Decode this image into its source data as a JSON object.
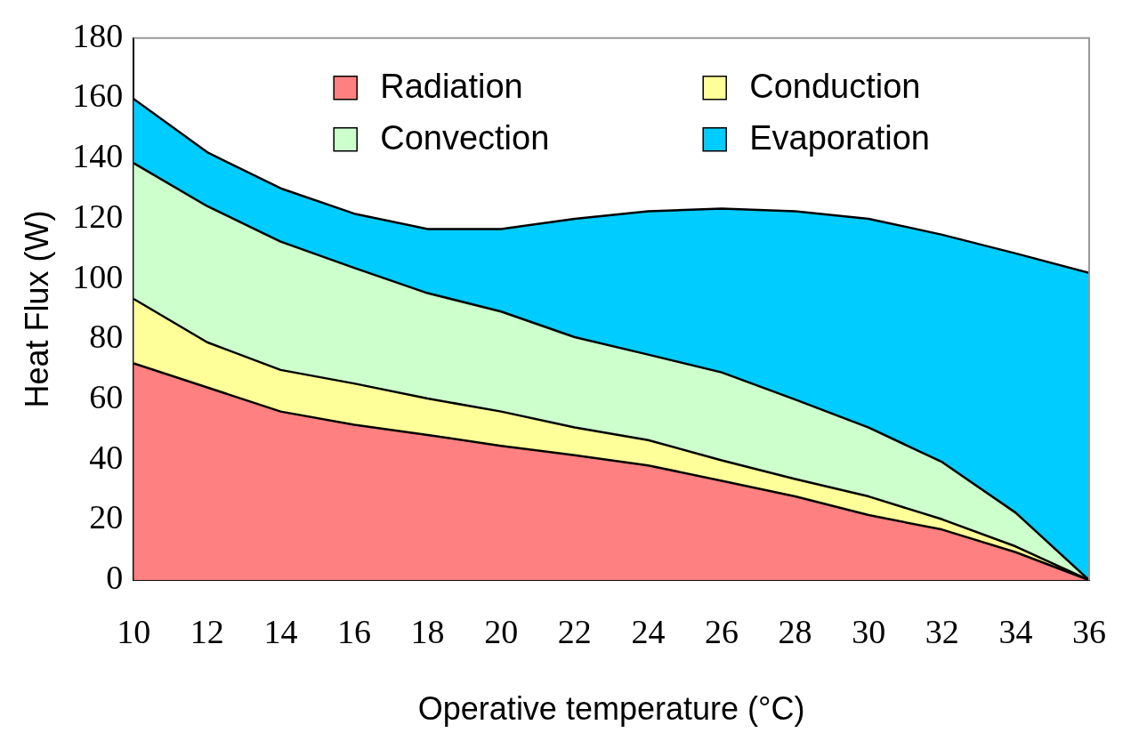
{
  "chart_data": {
    "type": "area",
    "stacked": true,
    "xlabel": "Operative temperature (°C)",
    "ylabel": "Heat Flux (W)",
    "x": [
      10,
      12,
      14,
      16,
      18,
      20,
      22,
      24,
      26,
      28,
      30,
      32,
      34,
      36
    ],
    "xlim": [
      10,
      36
    ],
    "xticks": [
      10,
      12,
      14,
      16,
      18,
      20,
      22,
      24,
      26,
      28,
      30,
      32,
      34,
      36
    ],
    "ylim": [
      0,
      180
    ],
    "yticks": [
      0,
      20,
      40,
      60,
      80,
      100,
      120,
      140,
      160,
      180
    ],
    "grid": false,
    "legend": "top",
    "series": [
      {
        "name": "Radiation",
        "color": "#ff8080",
        "values": [
          72,
          64,
          56,
          51.6,
          48.2,
          44.6,
          41.5,
          38.1,
          33,
          27.8,
          21.6,
          16.8,
          9.3,
          0
        ]
      },
      {
        "name": "Conduction",
        "color": "#ffff99",
        "values": [
          21.4,
          15,
          13.8,
          13.7,
          12.1,
          11.4,
          9.2,
          8.4,
          6.8,
          5.8,
          6.2,
          3.4,
          1.9,
          0
        ]
      },
      {
        "name": "Convection",
        "color": "#ccffcc",
        "values": [
          45.1,
          45.2,
          42.6,
          38.4,
          35,
          33.2,
          30,
          28.4,
          29.2,
          26.4,
          22.9,
          19,
          11.2,
          0
        ]
      },
      {
        "name": "Evaporation",
        "color": "#00ccff",
        "values": [
          21.3,
          17.9,
          17.7,
          18,
          21.3,
          27.4,
          39.3,
          47.6,
          54.4,
          62.5,
          69.3,
          75.5,
          86.1,
          102
        ]
      }
    ]
  }
}
